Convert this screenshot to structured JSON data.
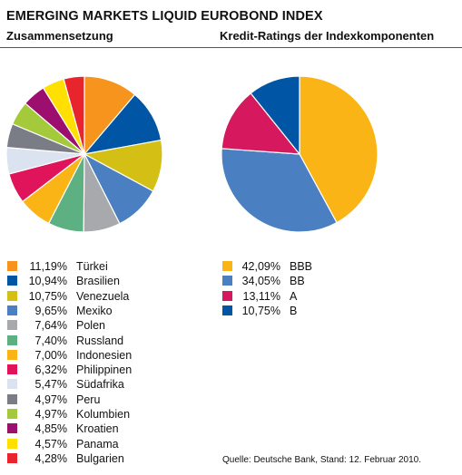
{
  "title": "EMERGING MARKETS LIQUID EUROBOND INDEX",
  "subtitle_left": "Zusammensetzung",
  "subtitle_right": "Kredit-Ratings der Indexkomponenten",
  "source": "Quelle: Deutsche Bank, Stand: 12. Februar 2010.",
  "chart_data": [
    {
      "type": "pie",
      "title": "Zusammensetzung",
      "slices": [
        {
          "label": "Türkei",
          "value": 11.19,
          "display": "11,19%",
          "color": "#F7941D"
        },
        {
          "label": "Brasilien",
          "value": 10.94,
          "display": "10,94%",
          "color": "#0055A4"
        },
        {
          "label": "Venezuela",
          "value": 10.75,
          "display": "10,75%",
          "color": "#D4C014"
        },
        {
          "label": "Mexiko",
          "value": 9.65,
          "display": "9,65%",
          "color": "#4A7FC1"
        },
        {
          "label": "Polen",
          "value": 7.64,
          "display": "7,64%",
          "color": "#A7A9AC"
        },
        {
          "label": "Russland",
          "value": 7.4,
          "display": "7,40%",
          "color": "#5DB082"
        },
        {
          "label": "Indonesien",
          "value": 7.0,
          "display": "7,00%",
          "color": "#FBB415"
        },
        {
          "label": "Philippinen",
          "value": 6.32,
          "display": "6,32%",
          "color": "#E0145A"
        },
        {
          "label": "Südafrika",
          "value": 5.47,
          "display": "5,47%",
          "color": "#DAE3EF"
        },
        {
          "label": "Peru",
          "value": 4.97,
          "display": "4,97%",
          "color": "#7A7D85"
        },
        {
          "label": "Kolumbien",
          "value": 4.97,
          "display": "4,97%",
          "color": "#A4C93A"
        },
        {
          "label": "Kroatien",
          "value": 4.85,
          "display": "4,85%",
          "color": "#9C0F6E"
        },
        {
          "label": "Panama",
          "value": 4.57,
          "display": "4,57%",
          "color": "#FFE000"
        },
        {
          "label": "Bulgarien",
          "value": 4.28,
          "display": "4,28%",
          "color": "#E8242C"
        }
      ]
    },
    {
      "type": "pie",
      "title": "Kredit-Ratings der Indexkomponenten",
      "slices": [
        {
          "label": "BBB",
          "value": 42.09,
          "display": "42,09%",
          "color": "#FBB415"
        },
        {
          "label": "BB",
          "value": 34.05,
          "display": "34,05%",
          "color": "#4A7FC1"
        },
        {
          "label": "A",
          "value": 13.11,
          "display": "13,11%",
          "color": "#D6185E"
        },
        {
          "label": "B",
          "value": 10.75,
          "display": "10,75%",
          "color": "#0055A4"
        }
      ]
    }
  ]
}
